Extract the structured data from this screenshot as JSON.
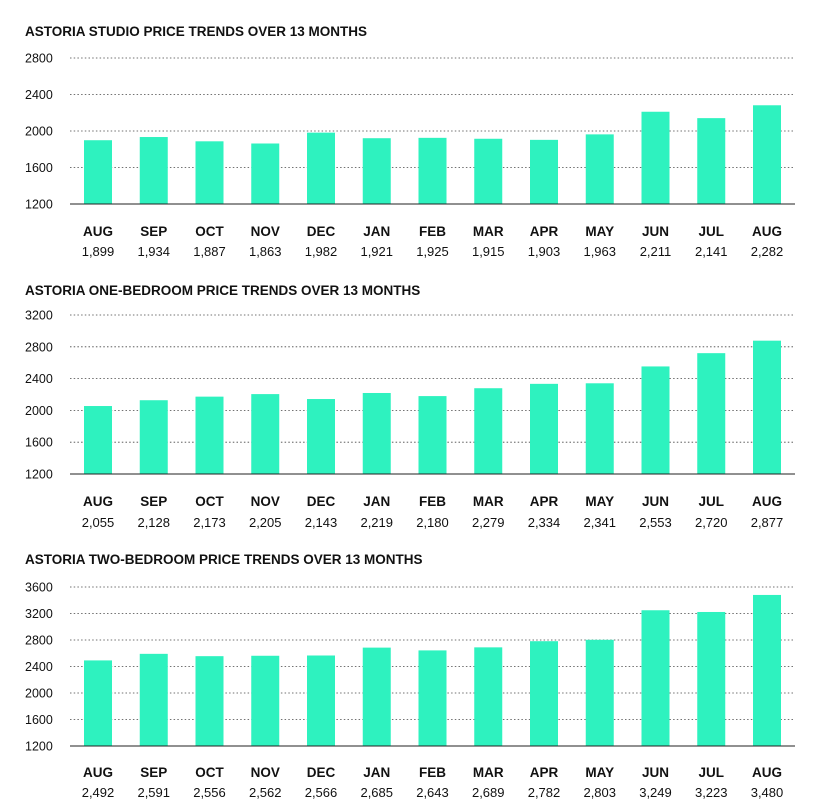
{
  "chart_data": [
    {
      "type": "bar",
      "title": "ASTORIA STUDIO PRICE TRENDS OVER 13 MONTHS",
      "categories": [
        "AUG",
        "SEP",
        "OCT",
        "NOV",
        "DEC",
        "JAN",
        "FEB",
        "MAR",
        "APR",
        "MAY",
        "JUN",
        "JUL",
        "AUG"
      ],
      "values": [
        1899,
        1934,
        1887,
        1863,
        1982,
        1921,
        1925,
        1915,
        1903,
        1963,
        2211,
        2141,
        2282
      ],
      "value_labels": [
        "1,899",
        "1,934",
        "1,887",
        "1,863",
        "1,982",
        "1,921",
        "1,925",
        "1,915",
        "1,903",
        "1,963",
        "2,211",
        "2,141",
        "2,282"
      ],
      "ylim": [
        1200,
        2800
      ],
      "yticks": [
        "1200",
        "1600",
        "2000",
        "2400",
        "2800"
      ],
      "grid": true,
      "bar_color": "#2ef2bf"
    },
    {
      "type": "bar",
      "title": "ASTORIA ONE-BEDROOM PRICE TRENDS OVER 13 MONTHS",
      "categories": [
        "AUG",
        "SEP",
        "OCT",
        "NOV",
        "DEC",
        "JAN",
        "FEB",
        "MAR",
        "APR",
        "MAY",
        "JUN",
        "JUL",
        "AUG"
      ],
      "values": [
        2055,
        2128,
        2173,
        2205,
        2143,
        2219,
        2180,
        2279,
        2334,
        2341,
        2553,
        2720,
        2877
      ],
      "value_labels": [
        "2,055",
        "2,128",
        "2,173",
        "2,205",
        "2,143",
        "2,219",
        "2,180",
        "2,279",
        "2,334",
        "2,341",
        "2,553",
        "2,720",
        "2,877"
      ],
      "ylim": [
        1200,
        3200
      ],
      "yticks": [
        "1200",
        "1600",
        "2000",
        "2400",
        "2800",
        "3200"
      ],
      "grid": true,
      "bar_color": "#2ef2bf"
    },
    {
      "type": "bar",
      "title": "ASTORIA TWO-BEDROOM PRICE TRENDS OVER 13 MONTHS",
      "categories": [
        "AUG",
        "SEP",
        "OCT",
        "NOV",
        "DEC",
        "JAN",
        "FEB",
        "MAR",
        "APR",
        "MAY",
        "JUN",
        "JUL",
        "AUG"
      ],
      "values": [
        2492,
        2591,
        2556,
        2562,
        2566,
        2685,
        2643,
        2689,
        2782,
        2803,
        3249,
        3223,
        3480
      ],
      "value_labels": [
        "2,492",
        "2,591",
        "2,556",
        "2,562",
        "2,566",
        "2,685",
        "2,643",
        "2,689",
        "2,782",
        "2,803",
        "3,249",
        "3,223",
        "3,480"
      ],
      "ylim": [
        1200,
        3600
      ],
      "yticks": [
        "1200",
        "1600",
        "2000",
        "2400",
        "2800",
        "3200",
        "3600"
      ],
      "grid": true,
      "bar_color": "#2ef2bf"
    }
  ]
}
